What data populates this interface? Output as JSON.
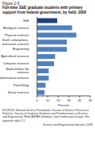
{
  "chart_data": {
    "type": "bar",
    "orientation": "horizontal",
    "label": "Figure 2-5",
    "title": "Full-time S&E graduate students with primary support from federal government, by field: 2006",
    "categories": [
      "S&E",
      "Biological sciences",
      "Physical sciences",
      "Earth, atmospheric, and ocean sciences",
      "Engineering",
      "Agricultural sciences",
      "Computer sciences",
      "Medical/other life sciences",
      "Mathematical sciences",
      "Psychology",
      "Social sciences"
    ],
    "values": [
      19,
      33,
      37,
      28,
      28,
      17,
      16,
      11,
      11,
      8,
      7
    ],
    "colors": [
      "#1f3f7a",
      "#4f81bd",
      "#4f81bd",
      "#4f81bd",
      "#4f81bd",
      "#4f81bd",
      "#4f81bd",
      "#4f81bd",
      "#4f81bd",
      "#4f81bd",
      "#4f81bd"
    ],
    "xlabel": "Percent",
    "xlim": [
      0,
      50
    ],
    "xticks": [
      0,
      10,
      20,
      30,
      40,
      50
    ],
    "grid": false,
    "annotations": [
      "SOURCE: National Science Foundation, Division of Science Resources Statistics, Survey of Graduate Students and Postdoctorates in Science and Engineering, WebCASPAR database, http://webcaspar.nsf.gov. See appendix table 2-5.",
      "Science and Engineering Indicators 2008"
    ]
  }
}
